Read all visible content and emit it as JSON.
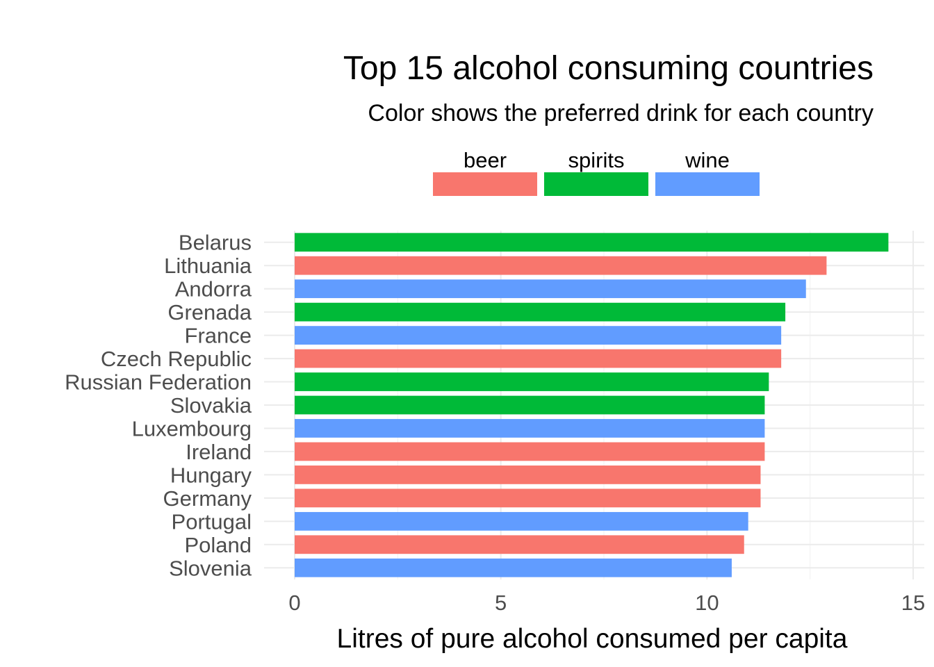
{
  "chart_data": {
    "type": "bar",
    "orientation": "horizontal",
    "title": "Top 15 alcohol consuming countries",
    "subtitle": "Color shows the preferred drink for each country",
    "xlabel": "Litres of pure alcohol consumed per capita",
    "ylabel": "",
    "xlim": [
      0,
      15
    ],
    "x_ticks": [
      "0",
      "5",
      "10",
      "15"
    ],
    "grid": true,
    "legend_position": "top",
    "legend": [
      {
        "key": "beer",
        "label": "beer",
        "color": "#F8766D"
      },
      {
        "key": "spirits",
        "label": "spirits",
        "color": "#00BA38"
      },
      {
        "key": "wine",
        "label": "wine",
        "color": "#619CFF"
      }
    ],
    "categories": [
      "Belarus",
      "Lithuania",
      "Andorra",
      "Grenada",
      "France",
      "Czech Republic",
      "Russian Federation",
      "Slovakia",
      "Luxembourg",
      "Ireland",
      "Hungary",
      "Germany",
      "Portugal",
      "Poland",
      "Slovenia"
    ],
    "values": [
      14.4,
      12.9,
      12.4,
      11.9,
      11.8,
      11.8,
      11.5,
      11.4,
      11.4,
      11.4,
      11.3,
      11.3,
      11.0,
      10.9,
      10.6
    ],
    "drink": [
      "spirits",
      "beer",
      "wine",
      "spirits",
      "wine",
      "beer",
      "spirits",
      "spirits",
      "wine",
      "beer",
      "beer",
      "beer",
      "wine",
      "beer",
      "wine"
    ]
  }
}
